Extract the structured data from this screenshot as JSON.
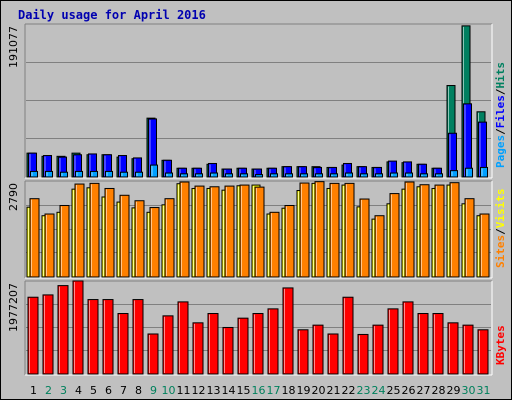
{
  "title": "Daily usage for April 2016",
  "colors": {
    "pages": "#00a0ff",
    "files": "#0000ff",
    "hits": "#008060",
    "visits": "#ffff00",
    "sites": "#ff8000",
    "kbytes": "#ff0000",
    "weekday_label": "#000000",
    "weekend_label": "#00805c"
  },
  "chart_data": [
    {
      "type": "bar",
      "name": "hits-files-pages",
      "max_label": "191077",
      "right_label_parts": [
        "Pages",
        "/",
        "Files",
        "/",
        "Hits"
      ],
      "ylim": [
        0,
        191077
      ],
      "series": [
        {
          "name": "Hits",
          "values": [
            30000,
            26000,
            26000,
            30000,
            28000,
            28000,
            25000,
            23000,
            74000,
            21000,
            11000,
            11000,
            16000,
            10000,
            11000,
            10000,
            11000,
            13000,
            13000,
            13000,
            12000,
            15000,
            13000,
            12000,
            19000,
            18000,
            16000,
            11000,
            115000,
            190000,
            82000
          ]
        },
        {
          "name": "Files",
          "values": [
            30000,
            27000,
            25000,
            28000,
            29000,
            28000,
            27000,
            24000,
            73000,
            21000,
            11000,
            11000,
            17000,
            10000,
            11000,
            10000,
            11000,
            13000,
            13000,
            12000,
            12000,
            17000,
            13000,
            12000,
            20000,
            19000,
            16000,
            11000,
            55000,
            92000,
            69000
          ]
        },
        {
          "name": "Pages",
          "values": [
            7000,
            7000,
            6000,
            7000,
            7000,
            7000,
            6000,
            6000,
            15000,
            5000,
            4000,
            4000,
            5000,
            4000,
            4000,
            3000,
            4000,
            4000,
            4000,
            4000,
            4000,
            5000,
            4000,
            4000,
            5000,
            5000,
            4000,
            4000,
            8000,
            11000,
            12000
          ]
        }
      ]
    },
    {
      "type": "bar",
      "name": "sites-visits",
      "max_label": "2790",
      "right_label_parts": [
        "Sites",
        "/",
        "Visits"
      ],
      "ylim": [
        0,
        2790
      ],
      "series": [
        {
          "name": "Visits",
          "values": [
            2050,
            1800,
            1900,
            2580,
            2620,
            2350,
            2200,
            2030,
            1900,
            2120,
            2740,
            2600,
            2600,
            2550,
            2680,
            2700,
            1850,
            2020,
            2540,
            2750,
            2600,
            2700,
            2060,
            1700,
            2150,
            2580,
            2650,
            2600,
            2700,
            2150,
            1800
          ]
        },
        {
          "name": "Sites",
          "values": [
            2300,
            1850,
            2100,
            2730,
            2750,
            2600,
            2400,
            2240,
            2040,
            2300,
            2790,
            2670,
            2650,
            2670,
            2700,
            2640,
            1900,
            2100,
            2760,
            2800,
            2750,
            2750,
            2290,
            1800,
            2450,
            2790,
            2710,
            2700,
            2770,
            2300,
            1850
          ]
        }
      ]
    },
    {
      "type": "bar",
      "name": "kbytes",
      "max_label": "1977207",
      "right_label_parts": [
        "KBytes"
      ],
      "ylim": [
        0,
        1977207
      ],
      "series": [
        {
          "name": "KBytes",
          "values": [
            1650000,
            1700000,
            1900000,
            2000000,
            1600000,
            1600000,
            1300000,
            1600000,
            860000,
            1250000,
            1550000,
            1100000,
            1300000,
            1000000,
            1200000,
            1300000,
            1400000,
            1850000,
            950000,
            1050000,
            860000,
            1650000,
            850000,
            1050000,
            1400000,
            1550000,
            1300000,
            1300000,
            1100000,
            1050000,
            950000
          ]
        }
      ]
    }
  ],
  "days": [
    "1",
    "2",
    "3",
    "4",
    "5",
    "6",
    "7",
    "8",
    "9",
    "10",
    "11",
    "12",
    "13",
    "14",
    "15",
    "16",
    "17",
    "18",
    "19",
    "20",
    "21",
    "22",
    "23",
    "24",
    "25",
    "26",
    "27",
    "28",
    "29",
    "30",
    "31"
  ],
  "weekend_days": [
    2,
    3,
    9,
    10,
    16,
    17,
    23,
    24,
    30,
    31
  ]
}
